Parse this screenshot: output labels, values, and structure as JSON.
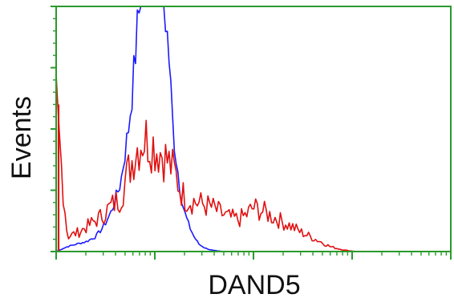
{
  "chart_data": {
    "type": "line",
    "title": "",
    "xlabel": "DAND5",
    "ylabel": "Events",
    "x_scale": "log",
    "xlim": [
      1,
      10000
    ],
    "ylim": [
      0,
      100
    ],
    "grid": false,
    "legend": "none",
    "tick_labels_shown": false,
    "colors": {
      "axis": "#2a9a2a",
      "control": "#1a1aff",
      "sample": "#e01010"
    },
    "series": [
      {
        "color": "#1a1aff",
        "x": [
          1.0,
          1.3,
          1.6,
          2.0,
          2.5,
          3.0,
          3.6,
          4.5,
          5.4,
          6.0,
          6.5,
          7.0,
          7.5,
          8.0,
          8.5,
          9.0,
          9.5,
          10.0,
          10.5,
          11.0,
          11.5,
          12.0,
          12.5,
          13.0,
          14.0,
          15.0,
          16.0,
          17.0,
          18.0,
          19.0,
          20.0,
          22.0,
          25.0,
          28.0,
          32.0,
          36.0,
          40.0,
          45.0,
          50.0
        ],
        "values": [
          0,
          2,
          3,
          4,
          6,
          10,
          16,
          28,
          50,
          68,
          86,
          100,
          100,
          100,
          100,
          100,
          100,
          100,
          100,
          100,
          100,
          100,
          100,
          94,
          78,
          55,
          42,
          34,
          26,
          20,
          16,
          11,
          6,
          3,
          1.5,
          0.8,
          0.4,
          0.2,
          0
        ]
      },
      {
        "color": "#e01010",
        "x": [
          1.0,
          1.3,
          1.7,
          2.2,
          2.8,
          3.5,
          4.5,
          5.5,
          6.5,
          7.5,
          8.5,
          9.5,
          10.5,
          12.0,
          14.0,
          16.0,
          18.0,
          20.0,
          23.0,
          27.0,
          32.0,
          38.0,
          45.0,
          55.0,
          70.0,
          85.0,
          100.0,
          115.0,
          130.0,
          160.0,
          200.0,
          250.0,
          300.0,
          380.0,
          480.0,
          600.0,
          750.0,
          900.0,
          1100.0
        ],
        "values": [
          60,
          6,
          8,
          11,
          14,
          18,
          22,
          34,
          42,
          46,
          46,
          44,
          42,
          40,
          36,
          32,
          26,
          22,
          21,
          20,
          19,
          18,
          16,
          14,
          13,
          15,
          18,
          17,
          16,
          14,
          12,
          10,
          8,
          6,
          4,
          2,
          1,
          0.4,
          0
        ]
      }
    ]
  }
}
